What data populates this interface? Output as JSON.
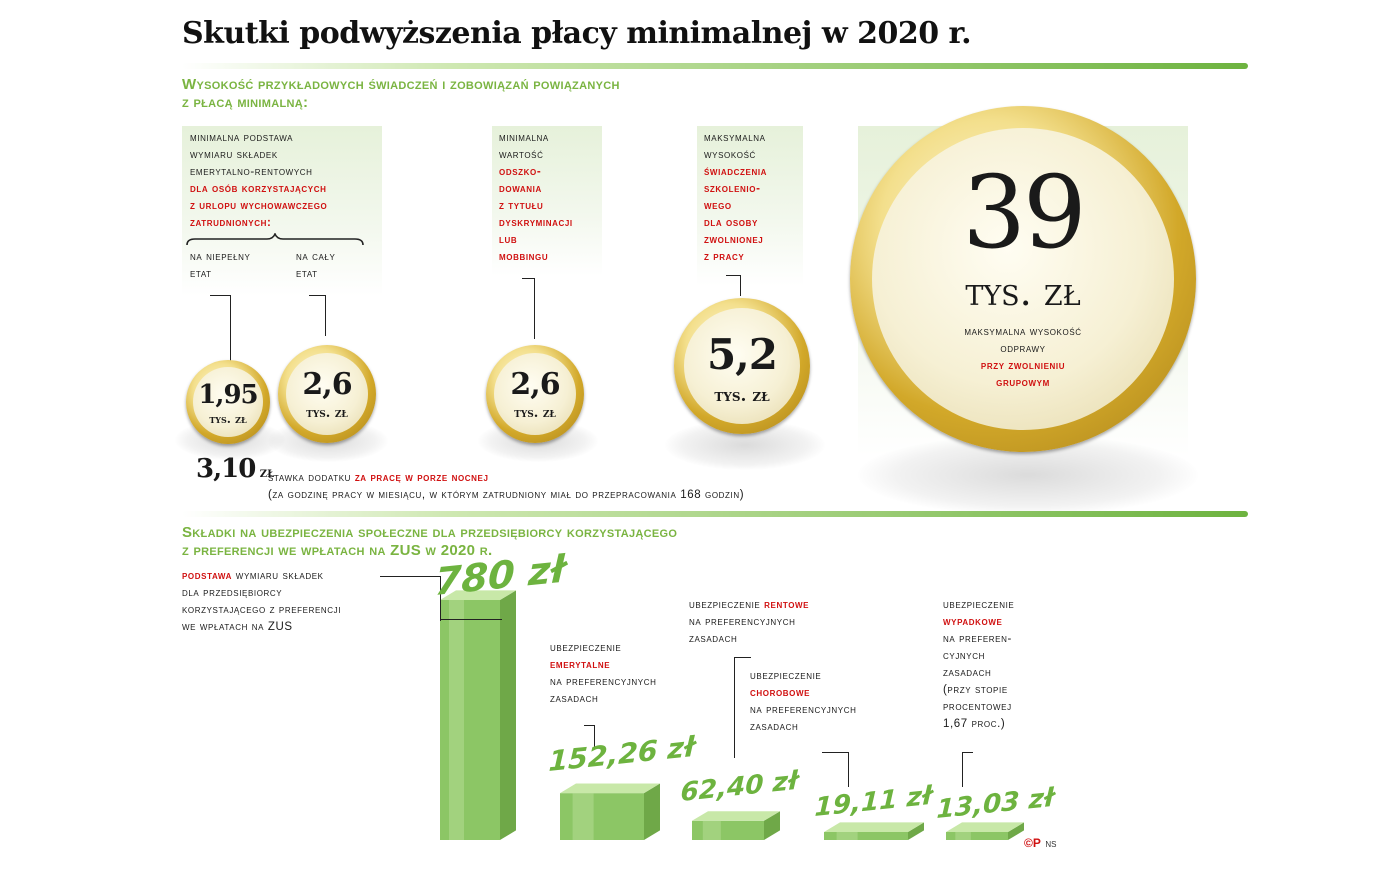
{
  "title": "Skutki podwyższenia płacy minimalnej w 2020 r.",
  "section1": {
    "heading_line1": "Wysokość przykładowych świadczeń i zobowiązań powiązanych",
    "heading_line2": "z płacą minimalną:",
    "panel1": {
      "lines": [
        "minimalna podstawa",
        "wymiaru składek",
        "emerytalno-rentowych"
      ],
      "red_lines": [
        "dla osób korzystających",
        "z urlopu wychowawczego",
        "zatrudnionych:"
      ],
      "sub_left": [
        "na niepełny",
        "etat"
      ],
      "sub_right": [
        "na cały",
        "etat"
      ]
    },
    "panel2": {
      "lines": [
        "minimalna",
        "wartość"
      ],
      "red_lines": [
        "odszko-",
        "dowania",
        "z tytułu",
        "dyskryminacji",
        "lub",
        "mobbingu"
      ]
    },
    "panel3": {
      "lines": [
        "maksymalna",
        "wysokość"
      ],
      "red_lines": [
        "świadczenia",
        "szkolenio-",
        "wego",
        "dla osoby",
        "zwolnionej",
        "z pracy"
      ]
    },
    "big_coin": {
      "lines": [
        "maksymalna wysokość",
        "odprawy"
      ],
      "red_lines": [
        "przy zwolnieniu",
        "grupowym"
      ]
    },
    "night_bonus": {
      "value": "3,10",
      "unit": "zł",
      "text_before": "stawka dodatku",
      "text_red": "za pracę w porze nocnej",
      "note": "(za godzinę pracy w miesiącu, w którym zatrudniony miał do przepracowania 168 godzin)"
    }
  },
  "section2": {
    "heading_line1": "Składki na ubezpieczenia społeczne dla przedsiębiorcy korzystającego",
    "heading_line2": "z preferencji we wpłatach na ZUS w 2020 r.",
    "labels": {
      "podstawa": {
        "red": "podstawa",
        "lines": [
          "wymiaru składek",
          "dla przedsiębiorcy",
          "korzystającego z preferencji",
          "we wpłatach na ZUS"
        ]
      },
      "emerytalne": {
        "pre": "ubezpieczenie",
        "red": "emerytalne",
        "post": [
          "na preferencyjnych",
          "zasadach"
        ]
      },
      "rentowe": {
        "pre": "ubezpieczenie",
        "red": "rentowe",
        "post": [
          "na preferencyjnych",
          "zasadach"
        ]
      },
      "chorobowe": {
        "pre": "ubezpieczenie",
        "red": "chorobowe",
        "post": [
          "na preferencyjnych",
          "zasadach"
        ]
      },
      "wypadkowe": {
        "pre": "ubezpieczenie",
        "red": "wypadkowe",
        "post": [
          "na preferen-",
          "cyjnych",
          "zasadach",
          "(przy stopie",
          "procentowej",
          "1,67 proc.)"
        ]
      }
    }
  },
  "credit": {
    "logo": "©P",
    "author": "NS"
  },
  "chart_data": [
    {
      "type": "bar",
      "categories": [
        "na niepełny etat",
        "na cały etat",
        "odszkodowanie z tytułu dyskryminacji lub mobbingu",
        "świadczenie szkoleniowe dla osoby zwolnionej z pracy",
        "odprawa przy zwolnieniu grupowym"
      ],
      "values": [
        1.95,
        2.6,
        2.6,
        5.2,
        39
      ],
      "value_labels": [
        "1,95",
        "2,6",
        "2,6",
        "5,2",
        "39"
      ],
      "unit": "tys. zł"
    },
    {
      "type": "bar",
      "categories": [
        "podstawa",
        "emerytalne",
        "rentowe",
        "chorobowe",
        "wypadkowe"
      ],
      "values": [
        780,
        152.26,
        62.4,
        19.11,
        13.03
      ],
      "value_labels": [
        "780 zł",
        "152,26 zł",
        "62,40 zł",
        "19,11 zł",
        "13,03 zł"
      ],
      "colors": {
        "bar_front": "#8cc665",
        "bar_top": "#c8e8a8",
        "bar_side": "#6fa848",
        "label": "#6db33f"
      }
    }
  ]
}
